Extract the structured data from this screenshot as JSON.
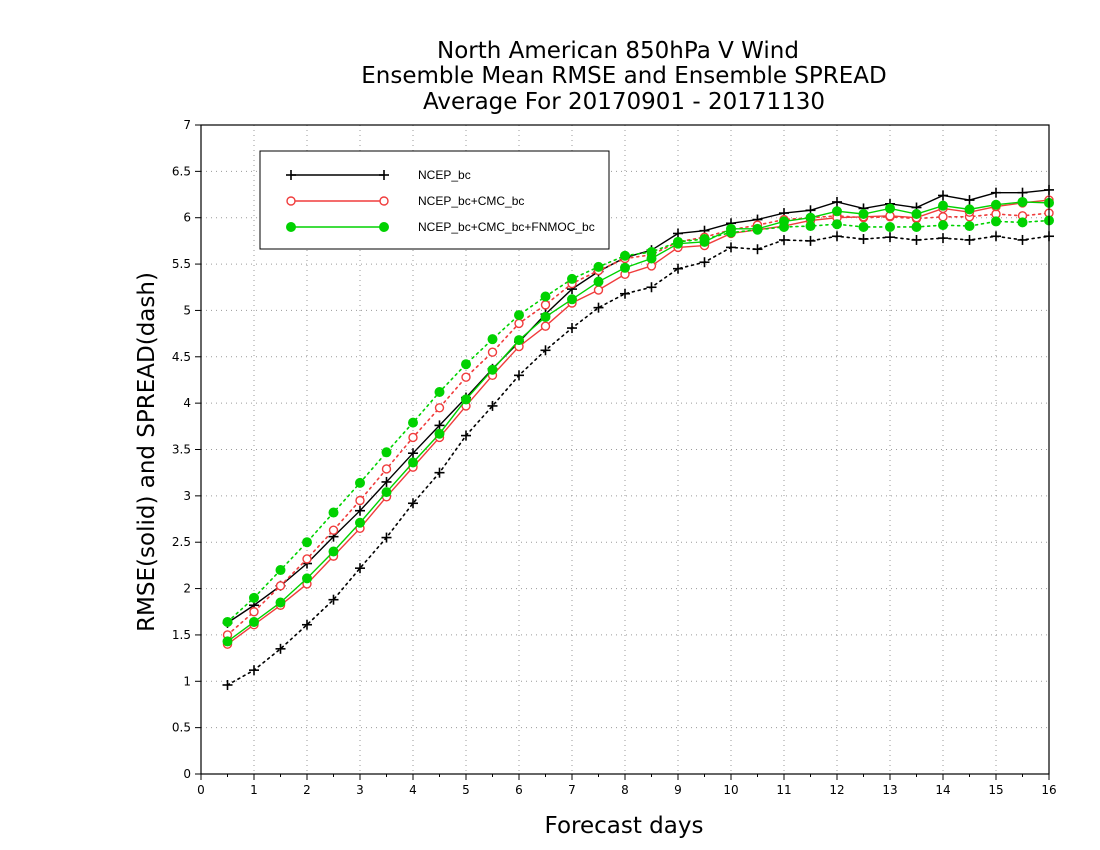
{
  "chart_data": {
    "type": "line",
    "title": [
      "North American 850hPa V Wind",
      "Ensemble Mean RMSE and Ensemble SPREAD",
      "Average For 20170901 - 20171130"
    ],
    "xlabel": "Forecast days",
    "ylabel": "RMSE(solid) and SPREAD(dash)",
    "xlim": [
      0,
      16
    ],
    "ylim": [
      0,
      7
    ],
    "xticks": [
      "0",
      "1",
      "2",
      "3",
      "4",
      "5",
      "6",
      "7",
      "8",
      "9",
      "10",
      "11",
      "12",
      "13",
      "14",
      "15",
      "16"
    ],
    "yticks": [
      "0",
      "0.5",
      "1",
      "1.5",
      "2",
      "2.5",
      "3",
      "3.5",
      "4",
      "4.5",
      "5",
      "5.5",
      "6",
      "6.5",
      "7"
    ],
    "grid": true,
    "legend_position": "top-left",
    "x": [
      0.5,
      1,
      1.5,
      2,
      2.5,
      3,
      3.5,
      4,
      4.5,
      5,
      5.5,
      6,
      6.5,
      7,
      7.5,
      8,
      8.5,
      9,
      9.5,
      10,
      10.5,
      11,
      11.5,
      12,
      12.5,
      13,
      13.5,
      14,
      14.5,
      15,
      15.5,
      16
    ],
    "series": [
      {
        "name": "NCEP_bc",
        "color": "#000000",
        "marker": "plus",
        "rmse": [
          1.63,
          1.82,
          2.03,
          2.27,
          2.56,
          2.84,
          3.15,
          3.46,
          3.76,
          4.06,
          4.37,
          4.66,
          4.96,
          5.23,
          5.42,
          5.57,
          5.65,
          5.83,
          5.86,
          5.94,
          5.98,
          6.05,
          6.08,
          6.17,
          6.1,
          6.15,
          6.11,
          6.24,
          6.19,
          6.27,
          6.27,
          6.3
        ],
        "spread": [
          0.96,
          1.12,
          1.35,
          1.61,
          1.88,
          2.22,
          2.55,
          2.92,
          3.25,
          3.65,
          3.97,
          4.3,
          4.57,
          4.81,
          5.03,
          5.18,
          5.25,
          5.45,
          5.52,
          5.68,
          5.66,
          5.76,
          5.75,
          5.8,
          5.77,
          5.79,
          5.76,
          5.78,
          5.76,
          5.8,
          5.76,
          5.8
        ]
      },
      {
        "name": "NCEP_bc+CMC_bc",
        "color": "#f03c3c",
        "marker": "open-circle",
        "rmse": [
          1.4,
          1.61,
          1.82,
          2.05,
          2.35,
          2.65,
          2.99,
          3.31,
          3.63,
          3.97,
          4.3,
          4.61,
          4.83,
          5.08,
          5.22,
          5.39,
          5.48,
          5.68,
          5.7,
          5.83,
          5.87,
          5.91,
          5.97,
          6.0,
          6.01,
          6.02,
          6.0,
          6.1,
          6.06,
          6.12,
          6.16,
          6.19
        ],
        "spread": [
          1.5,
          1.75,
          2.03,
          2.32,
          2.63,
          2.95,
          3.29,
          3.63,
          3.95,
          4.28,
          4.55,
          4.86,
          5.06,
          5.29,
          5.43,
          5.56,
          5.6,
          5.74,
          5.79,
          5.87,
          5.92,
          5.98,
          6.0,
          6.02,
          6.0,
          6.01,
          5.99,
          6.01,
          6.01,
          6.04,
          6.02,
          6.05
        ]
      },
      {
        "name": "NCEP_bc+CMC_bc+FNMOC_bc",
        "color": "#00d200",
        "marker": "filled-circle",
        "rmse": [
          1.43,
          1.64,
          1.85,
          2.11,
          2.4,
          2.71,
          3.04,
          3.36,
          3.67,
          4.04,
          4.36,
          4.68,
          4.93,
          5.12,
          5.31,
          5.46,
          5.56,
          5.72,
          5.74,
          5.88,
          5.88,
          5.96,
          6.0,
          6.07,
          6.04,
          6.1,
          6.04,
          6.13,
          6.09,
          6.14,
          6.17,
          6.16
        ],
        "spread": [
          1.64,
          1.9,
          2.2,
          2.5,
          2.82,
          3.14,
          3.47,
          3.79,
          4.12,
          4.42,
          4.69,
          4.95,
          5.15,
          5.34,
          5.47,
          5.59,
          5.63,
          5.74,
          5.77,
          5.84,
          5.87,
          5.9,
          5.91,
          5.93,
          5.9,
          5.9,
          5.9,
          5.92,
          5.91,
          5.96,
          5.95,
          5.97
        ]
      }
    ]
  }
}
